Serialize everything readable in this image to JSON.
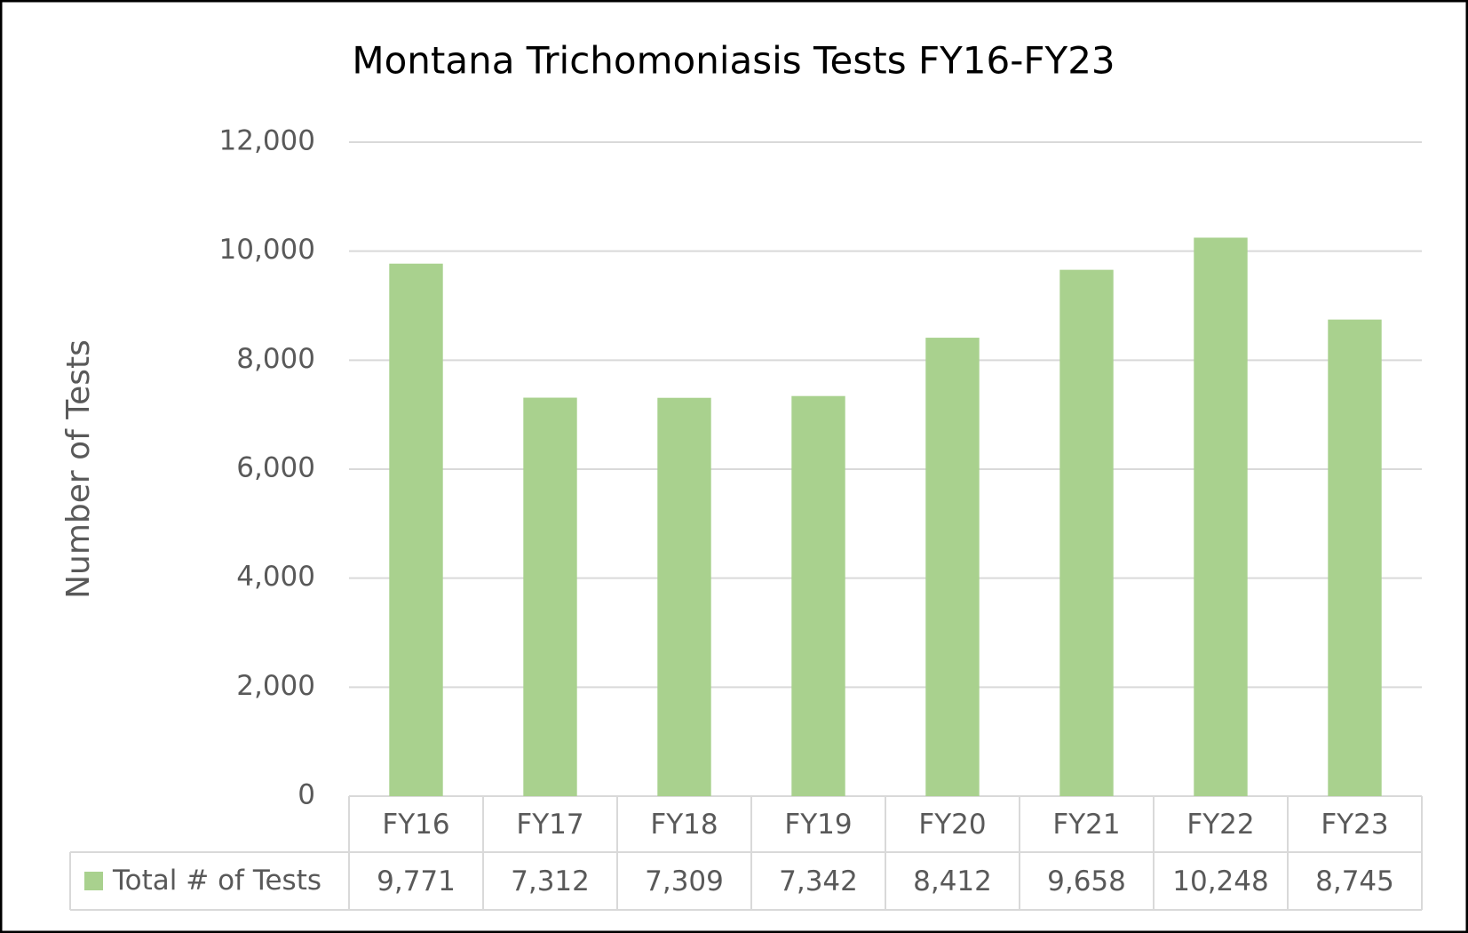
{
  "chart_data": {
    "type": "bar",
    "title": "Montana Trichomoniasis Tests FY16-FY23",
    "y_label": "Number of Tests",
    "categories": [
      "FY16",
      "FY17",
      "FY18",
      "FY19",
      "FY20",
      "FY21",
      "FY22",
      "FY23"
    ],
    "series": [
      {
        "name": "Total # of Tests",
        "color": "#a9d18e",
        "values": [
          9771,
          7312,
          7309,
          7342,
          8412,
          9658,
          10248,
          8745
        ],
        "value_labels": [
          "9,771",
          "7,312",
          "7,309",
          "7,342",
          "8,412",
          "9,658",
          "10,248",
          "8,745"
        ]
      }
    ],
    "ylim": [
      0,
      12000
    ],
    "yticks": [
      0,
      {
        "value": 2000,
        "label": "2,000"
      },
      {
        "value": 4000,
        "label": "4,000"
      },
      {
        "value": 6000,
        "label": "6,000"
      },
      {
        "value": 8000,
        "label": "8,000"
      },
      {
        "value": 10000,
        "label": "10,000"
      },
      {
        "value": 12000,
        "label": "12,000"
      }
    ],
    "grid": true,
    "data_table": true
  }
}
